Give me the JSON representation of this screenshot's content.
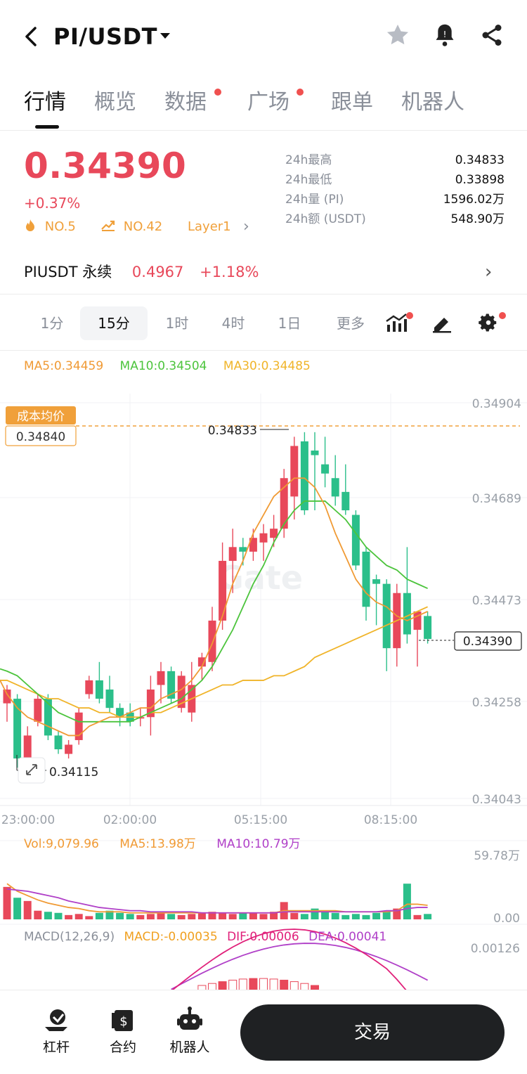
{
  "header": {
    "back_icon": "chevron-left-icon",
    "pair": "PI/USDT",
    "caret_icon": "caret-down-icon",
    "icons": [
      "star-icon",
      "bell-icon",
      "share-icon"
    ]
  },
  "tabs": [
    {
      "label": "行情",
      "active": true,
      "dot": false
    },
    {
      "label": "概览",
      "active": false,
      "dot": false
    },
    {
      "label": "数据",
      "active": false,
      "dot": true
    },
    {
      "label": "广场",
      "active": false,
      "dot": true
    },
    {
      "label": "跟单",
      "active": false,
      "dot": false
    },
    {
      "label": "机器人",
      "active": false,
      "dot": false
    }
  ],
  "ticker": {
    "price": "0.34390",
    "change": "+0.37%",
    "rank1": "NO.5",
    "rank2": "NO.42",
    "category": "Layer1",
    "stats": [
      {
        "label": "24h最高",
        "value": "0.34833"
      },
      {
        "label": "24h最低",
        "value": "0.33898"
      },
      {
        "label": "24h量 (PI)",
        "value": "1596.02万"
      },
      {
        "label": "24h额 (USDT)",
        "value": "548.90万"
      }
    ]
  },
  "perpetual": {
    "name": "PIUSDT 永续",
    "price": "0.4967",
    "change": "+1.18%"
  },
  "intervals": [
    "1分",
    "15分",
    "1时",
    "4时",
    "1日",
    "更多"
  ],
  "selected_interval": "15分",
  "ma_legend": {
    "ma5": "MA5:0.34459",
    "ma10": "MA10:0.34504",
    "ma30": "MA30:0.34485"
  },
  "chart_labels": {
    "cost_label": "成本均价",
    "cost_value": "0.34840",
    "high_marker": "0.34833",
    "low_marker": "0.34115",
    "current_marker": "0.34390",
    "watermark": "Gate"
  },
  "colors": {
    "up": "#e8485a",
    "down": "#2bbf8a",
    "ma5": "#f09a34",
    "ma10": "#4cc43c",
    "ma30": "#f0b429",
    "accent": "#f0a03a"
  },
  "chart_data": {
    "type": "candlestick",
    "yticks": [
      "0.34904",
      "0.34689",
      "0.34473",
      "0.34258",
      "0.34043"
    ],
    "ylim": [
      0.34043,
      0.34904
    ],
    "xticks": [
      "23:00:00",
      "02:00:00",
      "05:15:00",
      "08:15:00"
    ],
    "candles": [
      {
        "o": 0.3425,
        "h": 0.3429,
        "l": 0.3421,
        "c": 0.3428
      },
      {
        "o": 0.3426,
        "h": 0.3427,
        "l": 0.3411,
        "c": 0.3413
      },
      {
        "o": 0.3413,
        "h": 0.342,
        "l": 0.3412,
        "c": 0.3418
      },
      {
        "o": 0.3421,
        "h": 0.3427,
        "l": 0.342,
        "c": 0.3426
      },
      {
        "o": 0.3426,
        "h": 0.3427,
        "l": 0.3417,
        "c": 0.3418
      },
      {
        "o": 0.3418,
        "h": 0.3419,
        "l": 0.3414,
        "c": 0.3415
      },
      {
        "o": 0.3414,
        "h": 0.3417,
        "l": 0.3413,
        "c": 0.3416
      },
      {
        "o": 0.3417,
        "h": 0.3424,
        "l": 0.3416,
        "c": 0.3423
      },
      {
        "o": 0.3427,
        "h": 0.3431,
        "l": 0.3426,
        "c": 0.343
      },
      {
        "o": 0.343,
        "h": 0.3434,
        "l": 0.3425,
        "c": 0.3426
      },
      {
        "o": 0.3428,
        "h": 0.3431,
        "l": 0.3423,
        "c": 0.3424
      },
      {
        "o": 0.3424,
        "h": 0.3425,
        "l": 0.342,
        "c": 0.3422
      },
      {
        "o": 0.3423,
        "h": 0.3425,
        "l": 0.342,
        "c": 0.3421
      },
      {
        "o": 0.3422,
        "h": 0.3424,
        "l": 0.342,
        "c": 0.3422
      },
      {
        "o": 0.3422,
        "h": 0.3431,
        "l": 0.3418,
        "c": 0.3428
      },
      {
        "o": 0.3429,
        "h": 0.3434,
        "l": 0.3425,
        "c": 0.3432
      },
      {
        "o": 0.3432,
        "h": 0.3433,
        "l": 0.3425,
        "c": 0.3426
      },
      {
        "o": 0.3424,
        "h": 0.3432,
        "l": 0.3423,
        "c": 0.3431
      },
      {
        "o": 0.3423,
        "h": 0.3434,
        "l": 0.3421,
        "c": 0.3429
      },
      {
        "o": 0.3433,
        "h": 0.3436,
        "l": 0.343,
        "c": 0.3435
      },
      {
        "o": 0.3434,
        "h": 0.3446,
        "l": 0.3432,
        "c": 0.3443
      },
      {
        "o": 0.3443,
        "h": 0.346,
        "l": 0.3441,
        "c": 0.3456
      },
      {
        "o": 0.3456,
        "h": 0.3463,
        "l": 0.3449,
        "c": 0.3459
      },
      {
        "o": 0.3459,
        "h": 0.3461,
        "l": 0.3455,
        "c": 0.3458
      },
      {
        "o": 0.3458,
        "h": 0.3463,
        "l": 0.3456,
        "c": 0.3461
      },
      {
        "o": 0.346,
        "h": 0.3464,
        "l": 0.3456,
        "c": 0.3462
      },
      {
        "o": 0.3461,
        "h": 0.3466,
        "l": 0.3459,
        "c": 0.3463
      },
      {
        "o": 0.3463,
        "h": 0.3476,
        "l": 0.3461,
        "c": 0.3474
      },
      {
        "o": 0.347,
        "h": 0.3483,
        "l": 0.3465,
        "c": 0.3481
      },
      {
        "o": 0.3482,
        "h": 0.3484,
        "l": 0.3466,
        "c": 0.3467
      },
      {
        "o": 0.348,
        "h": 0.3484,
        "l": 0.3467,
        "c": 0.3479
      },
      {
        "o": 0.3477,
        "h": 0.3483,
        "l": 0.3472,
        "c": 0.3475
      },
      {
        "o": 0.3474,
        "h": 0.3479,
        "l": 0.3468,
        "c": 0.347
      },
      {
        "o": 0.3471,
        "h": 0.3477,
        "l": 0.3466,
        "c": 0.3467
      },
      {
        "o": 0.3466,
        "h": 0.3467,
        "l": 0.3454,
        "c": 0.3455
      },
      {
        "o": 0.3458,
        "h": 0.3459,
        "l": 0.3443,
        "c": 0.3446
      },
      {
        "o": 0.3452,
        "h": 0.3453,
        "l": 0.3442,
        "c": 0.3451
      },
      {
        "o": 0.3451,
        "h": 0.3452,
        "l": 0.3432,
        "c": 0.3437
      },
      {
        "o": 0.3437,
        "h": 0.3451,
        "l": 0.3433,
        "c": 0.3449
      },
      {
        "o": 0.3449,
        "h": 0.3459,
        "l": 0.3438,
        "c": 0.344
      },
      {
        "o": 0.3441,
        "h": 0.3445,
        "l": 0.3433,
        "c": 0.3445
      },
      {
        "o": 0.3444,
        "h": 0.3445,
        "l": 0.3438,
        "c": 0.3439
      }
    ],
    "ma5": [
      0.3427,
      0.3424,
      0.3422,
      0.3421,
      0.342,
      0.3419,
      0.3418,
      0.3418,
      0.342,
      0.3421,
      0.3422,
      0.3422,
      0.3423,
      0.3424,
      0.3424,
      0.3426,
      0.3427,
      0.3428,
      0.343,
      0.3433,
      0.3438,
      0.3444,
      0.3451,
      0.3456,
      0.3462,
      0.3466,
      0.347,
      0.3472,
      0.3474,
      0.3474,
      0.3472,
      0.3468,
      0.3462,
      0.3457,
      0.3452,
      0.3449,
      0.3447,
      0.3446,
      0.3444,
      0.3443,
      0.3444,
      0.3445
    ],
    "ma10": [
      0.3432,
      0.3431,
      0.3429,
      0.3427,
      0.3425,
      0.3423,
      0.3422,
      0.3421,
      0.3421,
      0.3421,
      0.3421,
      0.3421,
      0.3421,
      0.3422,
      0.3423,
      0.3424,
      0.3425,
      0.3426,
      0.3428,
      0.343,
      0.3433,
      0.3437,
      0.3441,
      0.3446,
      0.3451,
      0.3455,
      0.346,
      0.3464,
      0.3467,
      0.3469,
      0.3469,
      0.3469,
      0.3467,
      0.3465,
      0.3462,
      0.3459,
      0.3457,
      0.3455,
      0.3454,
      0.3452,
      0.3451,
      0.345
    ],
    "ma30": [
      0.343,
      0.3429,
      0.3428,
      0.3427,
      0.3426,
      0.3426,
      0.3425,
      0.3424,
      0.3424,
      0.3423,
      0.3423,
      0.3422,
      0.3422,
      0.3422,
      0.3423,
      0.3423,
      0.3424,
      0.3425,
      0.3426,
      0.3427,
      0.3428,
      0.3429,
      0.3429,
      0.343,
      0.343,
      0.343,
      0.3431,
      0.3431,
      0.3432,
      0.3433,
      0.3435,
      0.3436,
      0.3437,
      0.3438,
      0.3439,
      0.344,
      0.3441,
      0.3442,
      0.3443,
      0.3444,
      0.3445,
      0.3446
    ]
  },
  "volume": {
    "legend_vol": "Vol:9,079.96",
    "legend_ma5": "MA5:13.98万",
    "legend_ma10": "MA10:10.79万",
    "ytick_top": "59.78万",
    "ytick_bottom": "0.00",
    "ymax": 59.78,
    "values": [
      30,
      20,
      17,
      8,
      7,
      6,
      4,
      5,
      3,
      6,
      8,
      6,
      5,
      4,
      5,
      6,
      5,
      4,
      5,
      6,
      7,
      6,
      5,
      6,
      6,
      5,
      7,
      16,
      6,
      5,
      10,
      7,
      6,
      4,
      5,
      4,
      6,
      8,
      10,
      33,
      4,
      5
    ],
    "ma5": [
      33,
      26,
      22,
      18,
      15,
      13,
      11,
      10,
      8,
      7,
      7,
      7,
      6,
      6,
      6,
      6,
      6,
      6,
      6,
      6,
      6,
      6,
      6,
      6,
      6,
      6,
      6,
      8,
      8,
      8,
      8,
      8,
      8,
      7,
      7,
      7,
      7,
      7,
      8,
      14,
      14,
      13
    ],
    "ma10": [
      28,
      27,
      26,
      24,
      22,
      20,
      17,
      15,
      13,
      11,
      10,
      9,
      8,
      8,
      7,
      7,
      7,
      7,
      7,
      6,
      6,
      6,
      6,
      6,
      6,
      6,
      6,
      7,
      7,
      7,
      7,
      7,
      7,
      7,
      7,
      7,
      7,
      8,
      8,
      10,
      11,
      11
    ]
  },
  "macd": {
    "legend_name": "MACD(12,26,9)",
    "legend_macd": "MACD:-0.00035",
    "legend_dif": "DIF:0.00006",
    "legend_dea": "DEA:0.00041",
    "ytick_top": "0.00126"
  },
  "bottom_nav": [
    {
      "label": "杠杆",
      "icon": "leverage-icon"
    },
    {
      "label": "合约",
      "icon": "contract-icon"
    },
    {
      "label": "机器人",
      "icon": "robot-icon"
    }
  ],
  "trade_button": "交易"
}
